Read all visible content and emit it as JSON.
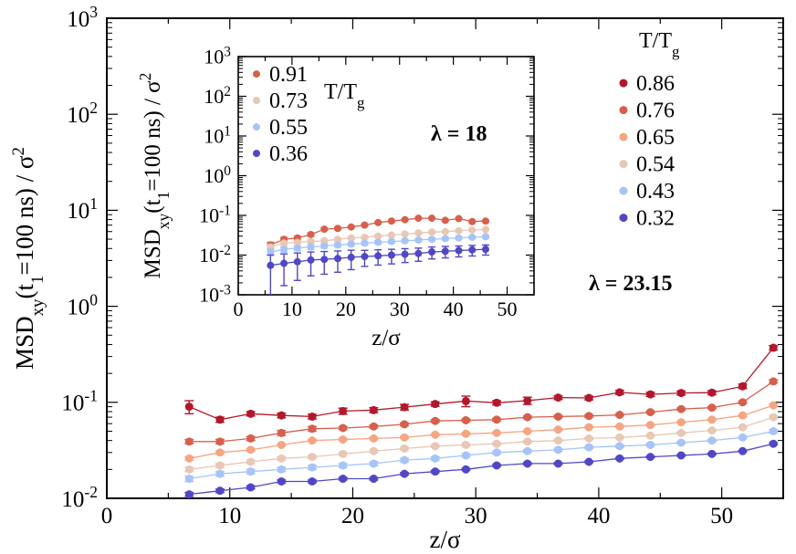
{
  "chart_data": [
    {
      "id": "main",
      "type": "line",
      "xlim": [
        0,
        55
      ],
      "ylim": [
        0.01,
        1000
      ],
      "yscale": "log",
      "xticks": [
        0,
        10,
        20,
        30,
        40,
        50
      ],
      "ytick_exponents": [
        -2,
        -1,
        0,
        1,
        2,
        3
      ],
      "xlabel": "z/σ",
      "ylabel": "MSDxy(t1=100 ns) / σ2",
      "legend_title": "T/Tg",
      "annotation": "λ = 23.15",
      "x": [
        6.7,
        9.2,
        11.7,
        14.2,
        16.7,
        19.2,
        21.7,
        24.2,
        26.7,
        29.2,
        31.7,
        34.2,
        36.7,
        39.2,
        41.7,
        44.2,
        46.7,
        49.2,
        51.7,
        54.2
      ],
      "series": [
        {
          "name": "0.86",
          "color": "#b2182b",
          "values": [
            0.09,
            0.066,
            0.076,
            0.073,
            0.071,
            0.081,
            0.083,
            0.089,
            0.096,
            0.103,
            0.099,
            0.104,
            0.112,
            0.111,
            0.127,
            0.121,
            0.125,
            0.126,
            0.147,
            0.37
          ],
          "err": [
            0.014,
            0.004,
            0.004,
            0.004,
            0.004,
            0.006,
            0.005,
            0.006,
            0.005,
            0.013,
            0.005,
            0.009,
            0.005,
            0.005,
            0.006,
            0.006,
            0.006,
            0.006,
            0.008,
            0.02
          ]
        },
        {
          "name": "0.76",
          "color": "#d6604d",
          "values": [
            0.039,
            0.039,
            0.042,
            0.048,
            0.053,
            0.054,
            0.056,
            0.059,
            0.064,
            0.065,
            0.066,
            0.07,
            0.071,
            0.072,
            0.074,
            0.079,
            0.085,
            0.088,
            0.1,
            0.165
          ],
          "err": [
            0.002,
            0.002,
            0.002,
            0.003,
            0.003,
            0.002,
            0.002,
            0.002,
            0.002,
            0.002,
            0.002,
            0.002,
            0.002,
            0.002,
            0.002,
            0.002,
            0.002,
            0.002,
            0.003,
            0.006
          ]
        },
        {
          "name": "0.65",
          "color": "#f4a582",
          "values": [
            0.026,
            0.03,
            0.032,
            0.036,
            0.04,
            0.041,
            0.042,
            0.043,
            0.046,
            0.047,
            0.048,
            0.05,
            0.052,
            0.055,
            0.056,
            0.058,
            0.062,
            0.066,
            0.073,
            0.093
          ],
          "err": [
            0.001,
            0.001,
            0.001,
            0.001,
            0.001,
            0.001,
            0.001,
            0.001,
            0.001,
            0.001,
            0.001,
            0.001,
            0.001,
            0.001,
            0.001,
            0.001,
            0.001,
            0.001,
            0.002,
            0.003
          ]
        },
        {
          "name": "0.54",
          "color": "#e8c7b4",
          "values": [
            0.02,
            0.022,
            0.024,
            0.026,
            0.027,
            0.029,
            0.031,
            0.033,
            0.035,
            0.036,
            0.037,
            0.039,
            0.04,
            0.042,
            0.043,
            0.045,
            0.048,
            0.051,
            0.055,
            0.07
          ],
          "err": [
            0.001,
            0.001,
            0.001,
            0.001,
            0.001,
            0.001,
            0.001,
            0.001,
            0.001,
            0.001,
            0.001,
            0.001,
            0.001,
            0.001,
            0.001,
            0.001,
            0.001,
            0.001,
            0.001,
            0.002
          ]
        },
        {
          "name": "0.43",
          "color": "#a6c4f7",
          "values": [
            0.016,
            0.018,
            0.019,
            0.02,
            0.021,
            0.022,
            0.023,
            0.025,
            0.026,
            0.028,
            0.03,
            0.031,
            0.032,
            0.034,
            0.035,
            0.036,
            0.038,
            0.04,
            0.043,
            0.05
          ],
          "err": [
            0.001,
            0.001,
            0.001,
            0.001,
            0.001,
            0.001,
            0.001,
            0.001,
            0.001,
            0.001,
            0.001,
            0.001,
            0.001,
            0.001,
            0.001,
            0.001,
            0.001,
            0.001,
            0.001,
            0.002
          ]
        },
        {
          "name": "0.32",
          "color": "#5147c4",
          "values": [
            0.011,
            0.012,
            0.013,
            0.015,
            0.015,
            0.016,
            0.016,
            0.018,
            0.019,
            0.02,
            0.022,
            0.023,
            0.023,
            0.024,
            0.026,
            0.027,
            0.028,
            0.029,
            0.031,
            0.037
          ],
          "err": [
            0.0005,
            0.0005,
            0.0005,
            0.0005,
            0.0005,
            0.0005,
            0.0005,
            0.0005,
            0.0005,
            0.0005,
            0.0005,
            0.0005,
            0.0005,
            0.0005,
            0.0005,
            0.0005,
            0.0005,
            0.0005,
            0.0005,
            0.001
          ]
        }
      ]
    },
    {
      "id": "inset",
      "type": "line",
      "xlim": [
        0,
        55
      ],
      "ylim": [
        0.001,
        1000
      ],
      "yscale": "log",
      "xticks": [
        0,
        10,
        20,
        30,
        40,
        50
      ],
      "ytick_exponents": [
        -3,
        -2,
        -1,
        0,
        1,
        2,
        3
      ],
      "xlabel": "z/σ",
      "ylabel": "MSDxy(t1=100 ns) / σ2",
      "legend_title": "T/Tg",
      "annotation": "λ = 18",
      "x": [
        6.0,
        8.5,
        11.0,
        13.5,
        16.0,
        18.5,
        21.0,
        23.5,
        26.0,
        28.5,
        31.0,
        33.5,
        36.0,
        38.5,
        41.0,
        43.5,
        46.0
      ],
      "series": [
        {
          "name": "0.91",
          "color": "#d6604d",
          "values": [
            0.018,
            0.025,
            0.027,
            0.033,
            0.045,
            0.047,
            0.051,
            0.057,
            0.066,
            0.072,
            0.078,
            0.085,
            0.085,
            0.075,
            0.083,
            0.07,
            0.072
          ],
          "err": [
            0.003,
            0.003,
            0.003,
            0.003,
            0.003,
            0.003,
            0.003,
            0.003,
            0.003,
            0.003,
            0.003,
            0.003,
            0.003,
            0.003,
            0.003,
            0.003,
            0.003
          ]
        },
        {
          "name": "0.73",
          "color": "#e8c7b4",
          "values": [
            0.016,
            0.02,
            0.021,
            0.022,
            0.023,
            0.025,
            0.027,
            0.028,
            0.03,
            0.032,
            0.034,
            0.036,
            0.038,
            0.039,
            0.041,
            0.043,
            0.044
          ],
          "err": [
            0.002,
            0.002,
            0.002,
            0.002,
            0.002,
            0.002,
            0.002,
            0.002,
            0.002,
            0.002,
            0.002,
            0.002,
            0.002,
            0.002,
            0.002,
            0.002,
            0.002
          ]
        },
        {
          "name": "0.55",
          "color": "#a6c4f7",
          "values": [
            0.012,
            0.014,
            0.015,
            0.016,
            0.017,
            0.018,
            0.019,
            0.02,
            0.021,
            0.022,
            0.023,
            0.024,
            0.025,
            0.026,
            0.027,
            0.028,
            0.029
          ],
          "err": [
            0.002,
            0.002,
            0.002,
            0.002,
            0.002,
            0.002,
            0.002,
            0.002,
            0.002,
            0.002,
            0.002,
            0.002,
            0.002,
            0.002,
            0.002,
            0.002,
            0.002
          ]
        },
        {
          "name": "0.36",
          "color": "#5147c4",
          "values": [
            0.0055,
            0.0062,
            0.0068,
            0.0075,
            0.0078,
            0.0082,
            0.0088,
            0.0092,
            0.0096,
            0.01,
            0.0105,
            0.011,
            0.012,
            0.0125,
            0.013,
            0.0135,
            0.014
          ],
          "err": [
            0.0045,
            0.0045,
            0.0045,
            0.0045,
            0.0045,
            0.0045,
            0.0045,
            0.004,
            0.004,
            0.004,
            0.004,
            0.004,
            0.004,
            0.004,
            0.004,
            0.004,
            0.004
          ]
        }
      ]
    }
  ]
}
